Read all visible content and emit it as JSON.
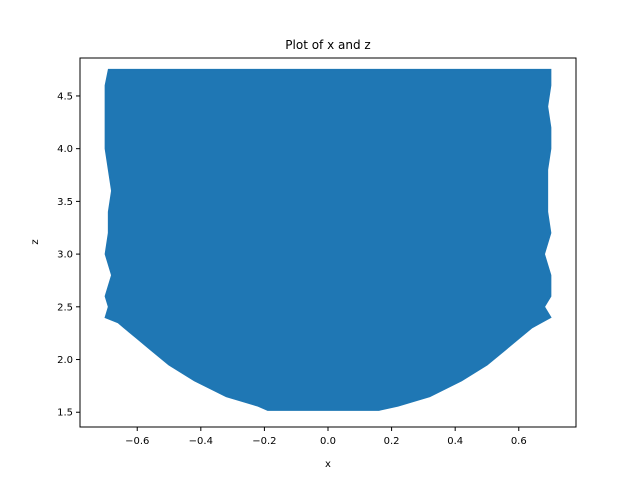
{
  "chart_data": {
    "type": "area",
    "title": "Plot of x and z",
    "xlabel": "x",
    "ylabel": "z",
    "xlim": [
      -0.78,
      0.78
    ],
    "ylim": [
      1.36,
      4.86
    ],
    "xticks": [
      -0.6,
      -0.4,
      -0.2,
      0.0,
      0.2,
      0.4,
      0.6
    ],
    "xtick_labels": [
      "−0.6",
      "−0.4",
      "−0.2",
      "0.0",
      "0.2",
      "0.4",
      "0.6"
    ],
    "yticks": [
      1.5,
      2.0,
      2.5,
      3.0,
      3.5,
      4.0,
      4.5
    ],
    "ytick_labels": [
      "1.5",
      "2.0",
      "2.5",
      "3.0",
      "3.5",
      "4.0",
      "4.5"
    ],
    "grid": false,
    "series": [
      {
        "color": "#1f77b4",
        "description_points": {
          "z": [
            1.52,
            1.56,
            1.65,
            1.8,
            1.95,
            2.1,
            2.2,
            2.3,
            2.35,
            2.4,
            2.5,
            2.6,
            2.8,
            3.0,
            3.2,
            3.4,
            3.6,
            3.8,
            4.0,
            4.2,
            4.4,
            4.6,
            4.75
          ],
          "x_left": [
            -0.19,
            -0.22,
            -0.32,
            -0.42,
            -0.5,
            -0.56,
            -0.6,
            -0.64,
            -0.66,
            -0.7,
            -0.69,
            -0.7,
            -0.68,
            -0.7,
            -0.69,
            -0.69,
            -0.68,
            -0.69,
            -0.7,
            -0.7,
            -0.7,
            -0.7,
            -0.69
          ],
          "x_right": [
            0.16,
            0.22,
            0.32,
            0.42,
            0.5,
            0.56,
            0.6,
            0.64,
            0.67,
            0.7,
            0.68,
            0.7,
            0.7,
            0.68,
            0.7,
            0.69,
            0.69,
            0.69,
            0.7,
            0.7,
            0.69,
            0.7,
            0.7
          ]
        }
      }
    ]
  }
}
